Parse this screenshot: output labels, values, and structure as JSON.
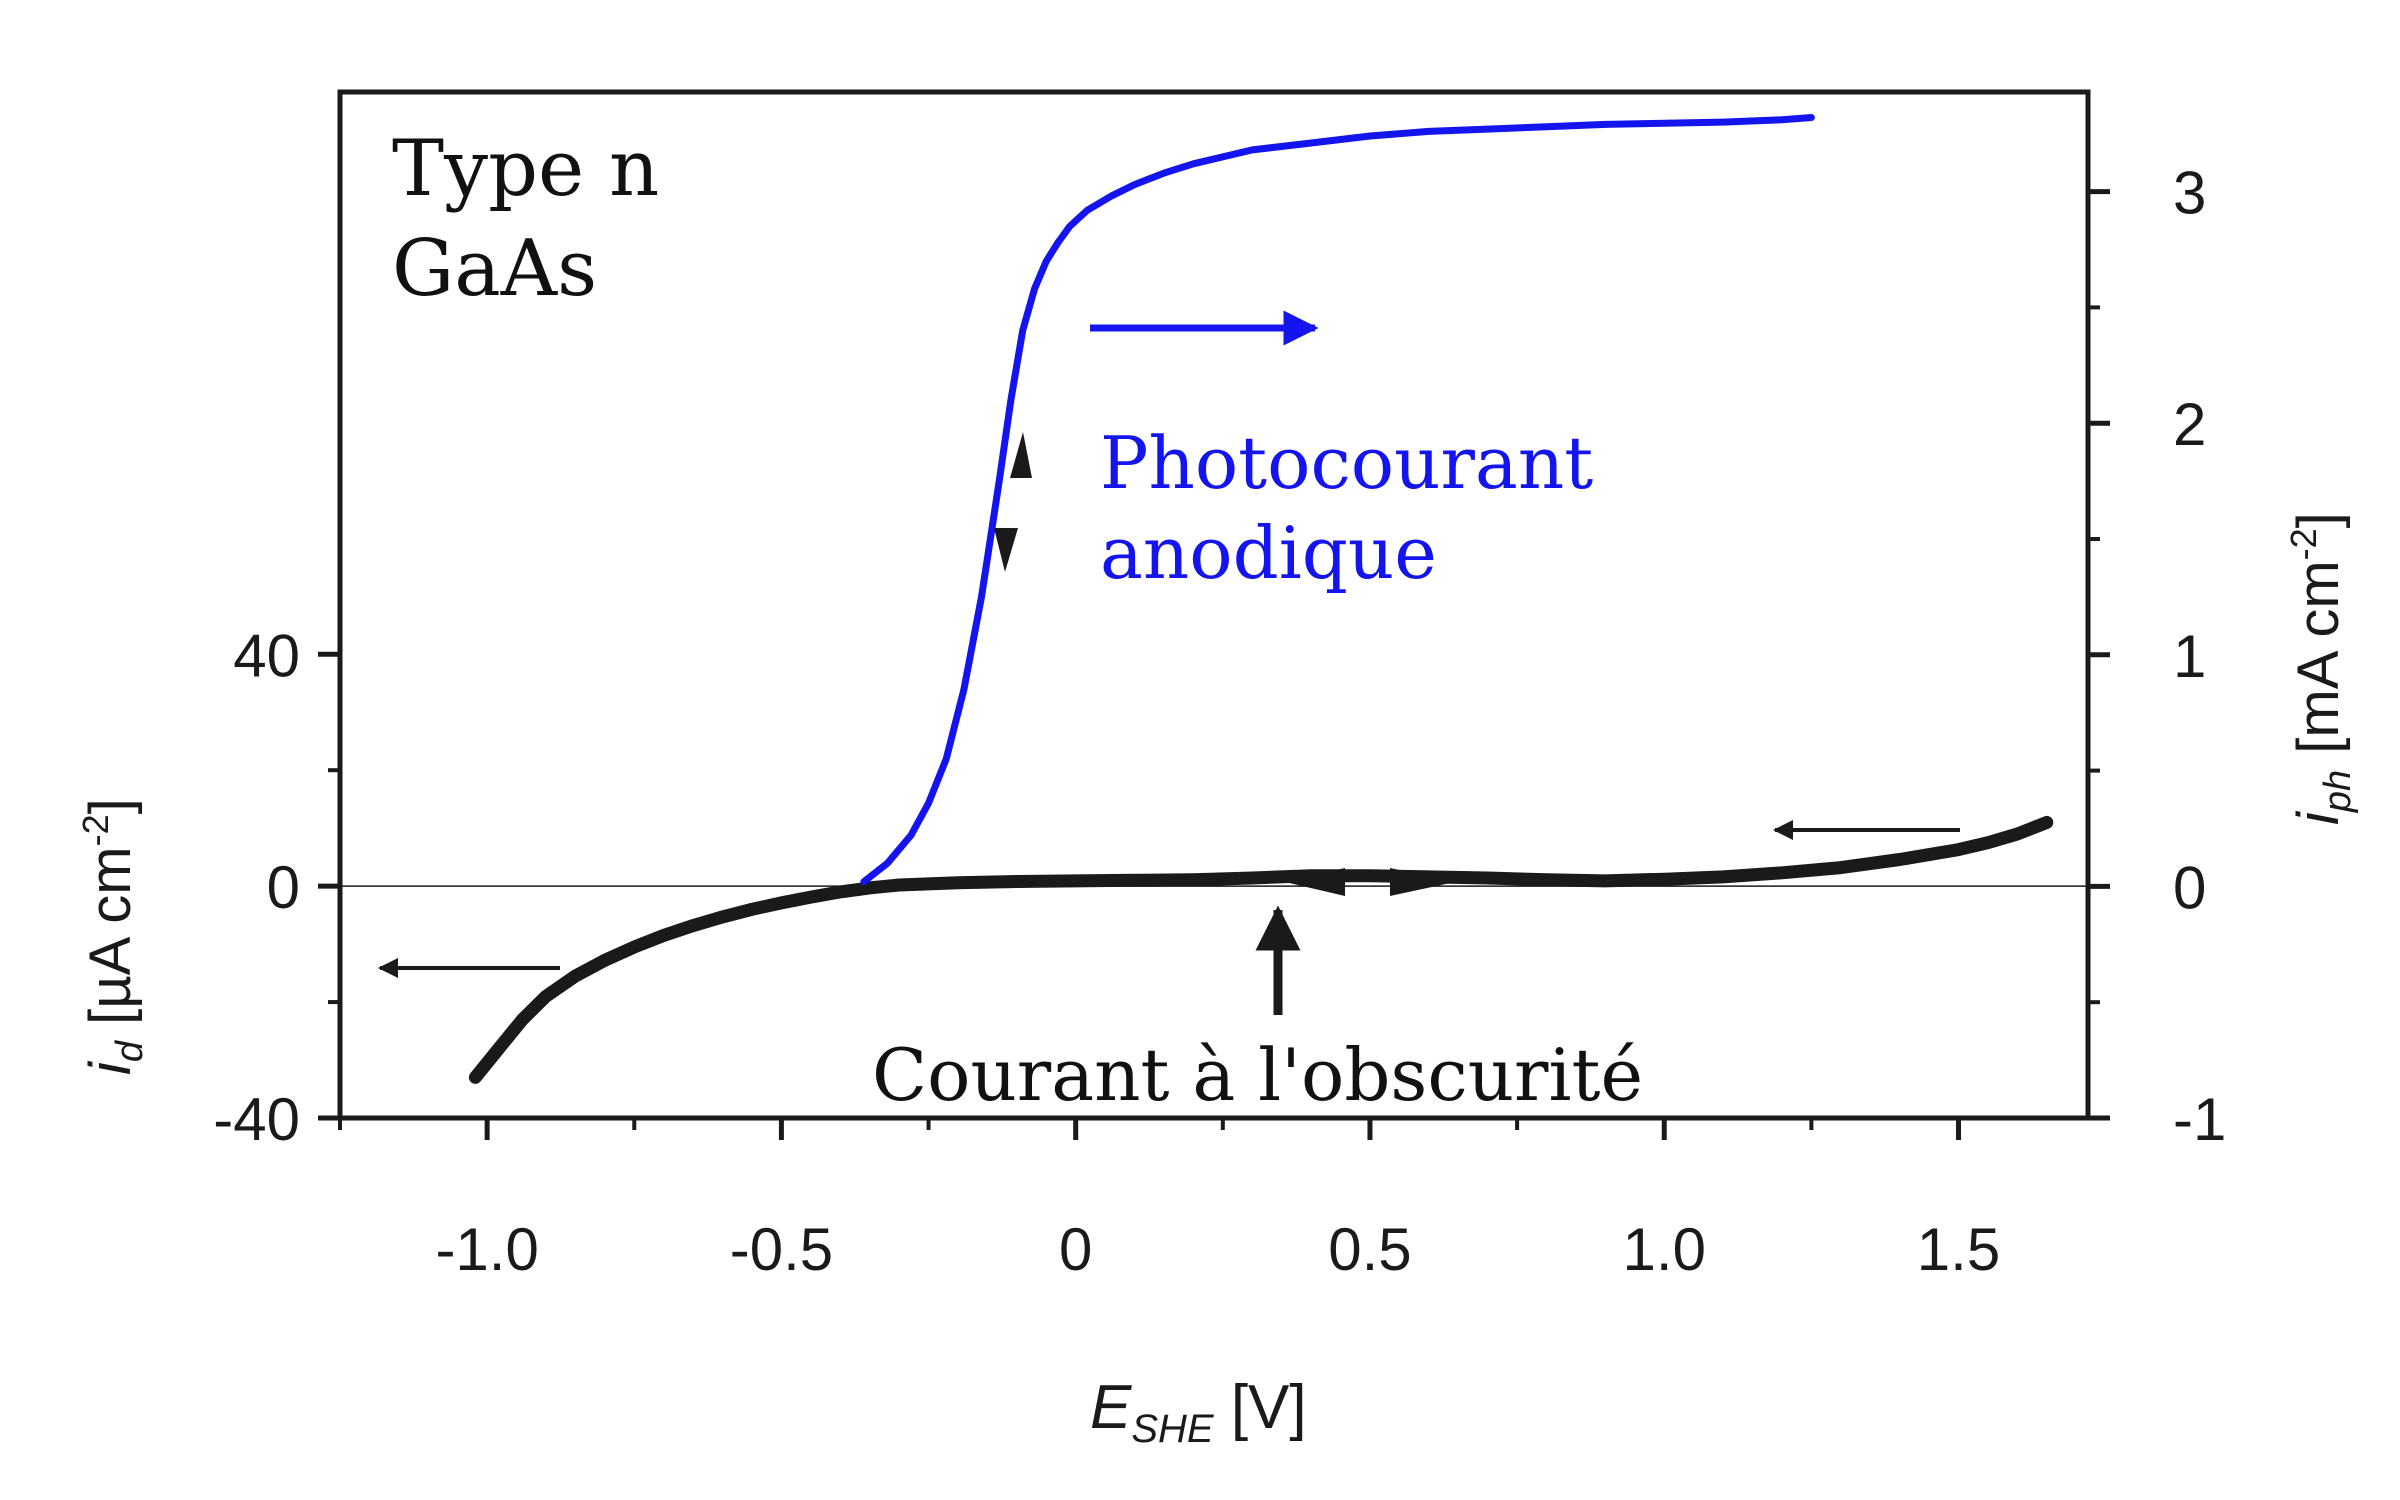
{
  "chart_data": {
    "type": "line",
    "title": "",
    "annotations": {
      "sample_line1": "Type n",
      "sample_line2": "GaAs",
      "photocurrent_line1": "Photocourant",
      "photocurrent_line2": "anodique",
      "dark_current": "Courant à l'obscurité"
    },
    "axes": {
      "x": {
        "label_main": "E",
        "label_sub": "SHE",
        "label_unit": " [V]",
        "range": [
          -1.25,
          1.72
        ],
        "ticks": [
          -1.0,
          -0.5,
          0,
          0.5,
          1.0,
          1.5
        ],
        "tick_labels": [
          "-1.0",
          "-0.5",
          "0",
          "0.5",
          "1.0",
          "1.5"
        ]
      },
      "y_left": {
        "label_main": "i",
        "label_sub": "d",
        "label_unit": " [µA cm",
        "label_exp": "-2",
        "label_close": "]",
        "range": [
          -40,
          137
        ],
        "ticks": [
          -40,
          0,
          40
        ],
        "tick_labels": [
          "-40",
          "0",
          "40"
        ]
      },
      "y_right": {
        "label_main": "i",
        "label_sub": "ph",
        "label_unit": " [mA cm",
        "label_exp": "-2",
        "label_close": "]",
        "range": [
          -1,
          3.43
        ],
        "ticks": [
          -1,
          0,
          1,
          2,
          3
        ],
        "tick_labels": [
          "-1",
          "0",
          "1",
          "2",
          "3"
        ]
      }
    },
    "grid": false,
    "colors": {
      "photocurrent": "#1414ee",
      "dark_current": "#1a1a1a",
      "axis": "#1a1a1a"
    },
    "series": [
      {
        "axis": "right",
        "x": [
          -0.36,
          -0.32,
          -0.28,
          -0.25,
          -0.22,
          -0.19,
          -0.16,
          -0.13,
          -0.11,
          -0.09,
          -0.07,
          -0.05,
          -0.03,
          -0.01,
          0.02,
          0.06,
          0.1,
          0.15,
          0.2,
          0.3,
          0.4,
          0.5,
          0.6,
          0.7,
          0.8,
          0.9,
          1.0,
          1.1,
          1.2,
          1.25
        ],
        "y": [
          0.02,
          0.1,
          0.22,
          0.36,
          0.55,
          0.85,
          1.25,
          1.75,
          2.1,
          2.4,
          2.58,
          2.7,
          2.78,
          2.85,
          2.92,
          2.98,
          3.03,
          3.08,
          3.12,
          3.18,
          3.21,
          3.24,
          3.26,
          3.27,
          3.28,
          3.29,
          3.295,
          3.3,
          3.31,
          3.32
        ]
      },
      {
        "axis": "left",
        "x": [
          -1.02,
          -0.98,
          -0.94,
          -0.9,
          -0.85,
          -0.8,
          -0.75,
          -0.7,
          -0.65,
          -0.6,
          -0.55,
          -0.5,
          -0.45,
          -0.4,
          -0.35,
          -0.3,
          -0.2,
          -0.1,
          0.0,
          0.1,
          0.2,
          0.3,
          0.4,
          0.5,
          0.6,
          0.7,
          0.8,
          0.9,
          1.0,
          1.1,
          1.2,
          1.3,
          1.4,
          1.5,
          1.55,
          1.6,
          1.65
        ],
        "y": [
          -33,
          -28,
          -23,
          -19,
          -15.5,
          -12.8,
          -10.5,
          -8.5,
          -6.8,
          -5.3,
          -4,
          -2.9,
          -1.9,
          -1,
          -0.3,
          0.2,
          0.6,
          0.8,
          0.9,
          1.0,
          1.1,
          1.4,
          1.8,
          1.8,
          1.6,
          1.4,
          1.1,
          0.9,
          1.2,
          1.6,
          2.3,
          3.2,
          4.6,
          6.3,
          7.5,
          9,
          11
        ]
      }
    ]
  }
}
